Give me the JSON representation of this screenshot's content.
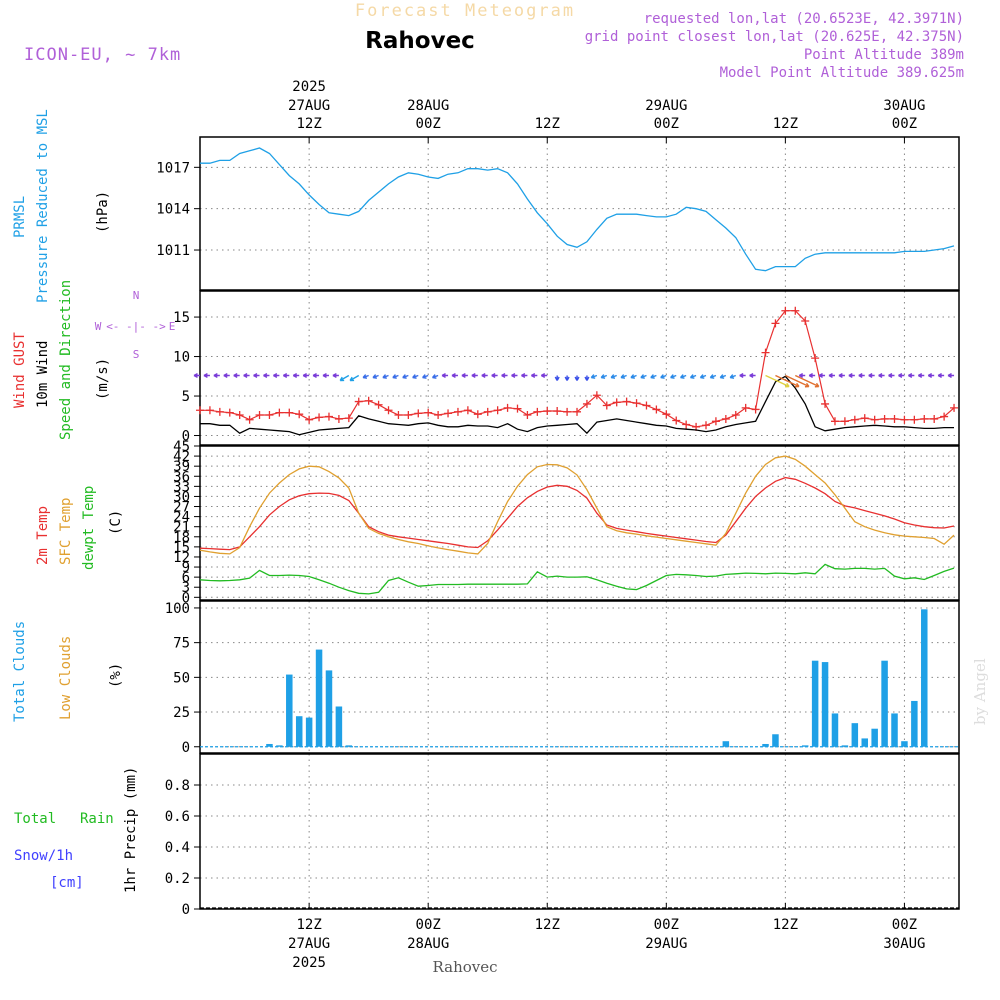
{
  "header": {
    "title": "Forecast Meteogram",
    "location": "Rahovec",
    "model": "ICON-EU, ~ 7km",
    "requested": "requested lon,lat (20.6523E, 42.3971N)",
    "grid_point": "grid point closest lon,lat (20.625E, 42.375N)",
    "point_altitude": "Point Altitude 389m",
    "model_altitude": "Model Point Altitude 389.625m",
    "credit": "by Angel",
    "footer_location": "Rahovec"
  },
  "time_axis": {
    "top_labels": [
      {
        "line1": "2025",
        "line2": "27AUG",
        "line3": "12Z"
      },
      {
        "line1": "",
        "line2": "28AUG",
        "line3": "00Z"
      },
      {
        "line1": "",
        "line2": "",
        "line3": "12Z"
      },
      {
        "line1": "",
        "line2": "29AUG",
        "line3": "00Z"
      },
      {
        "line1": "",
        "line2": "",
        "line3": "12Z"
      },
      {
        "line1": "",
        "line2": "30AUG",
        "line3": "00Z"
      }
    ],
    "bottom_labels": [
      {
        "line1": "12Z",
        "line2": "27AUG",
        "line3": "2025"
      },
      {
        "line1": "00Z",
        "line2": "28AUG",
        "line3": ""
      },
      {
        "line1": "12Z",
        "line2": "",
        "line3": ""
      },
      {
        "line1": "00Z",
        "line2": "29AUG",
        "line3": ""
      },
      {
        "line1": "12Z",
        "line2": "",
        "line3": ""
      },
      {
        "line1": "00Z",
        "line2": "30AUG",
        "line3": ""
      }
    ],
    "tick_hours": [
      12,
      24,
      36,
      48,
      60,
      72
    ],
    "range_hours": [
      1,
      77.5
    ]
  },
  "panels": {
    "pressure": {
      "labels": [
        "PRMSL",
        "Pressure Reduced to MSL",
        "(hPa)"
      ],
      "colors": [
        "#1fa0e6",
        "#1fa0e6",
        "#000000"
      ],
      "ticks": [
        "1017",
        "1014",
        "1011"
      ],
      "tick_values": [
        1017,
        1014,
        1011
      ],
      "ylim": [
        1008.1,
        1019.2
      ]
    },
    "wind": {
      "labels": [
        "Wind GUST",
        "10m Wind",
        "Speed and Direction",
        "(m/s)"
      ],
      "colors": [
        "#e83030",
        "#000000",
        "#22bb22",
        "#000000"
      ],
      "ticks": [
        "15",
        "10",
        "5",
        "0"
      ],
      "tick_values": [
        15,
        10,
        5,
        0
      ],
      "ylim": [
        -1.2,
        18.3
      ],
      "compass": {
        "n": "N",
        "s": "S",
        "w": "W",
        "e": "E",
        "center": "<- -|- ->"
      }
    },
    "temperature": {
      "labels": [
        "2m Temp",
        "SFC Temp",
        "dewpt Temp",
        "(C)"
      ],
      "colors": [
        "#e83030",
        "#e0a030",
        "#22bb22",
        "#000000"
      ],
      "ticks": [
        "45",
        "42",
        "39",
        "36",
        "33",
        "30",
        "27",
        "24",
        "21",
        "18",
        "15",
        "12",
        "9",
        "6",
        "3",
        "0"
      ],
      "tick_values": [
        45,
        42,
        39,
        36,
        33,
        30,
        27,
        24,
        21,
        18,
        15,
        12,
        9,
        6,
        3,
        0
      ],
      "ylim": [
        -0.8,
        45
      ]
    },
    "clouds": {
      "labels": [
        "Total Clouds",
        "Low Clouds",
        "(%)"
      ],
      "colors": [
        "#1fa0e6",
        "#e0a030",
        "#000000"
      ],
      "ticks": [
        "100",
        "75",
        "50",
        "25",
        "0"
      ],
      "tick_values": [
        100,
        75,
        50,
        25,
        0
      ],
      "ylim": [
        -4.5,
        105
      ]
    },
    "precip": {
      "labels": [
        "Total",
        "Rain",
        "Snow/1h",
        "[cm]",
        "1hr Precip (mm)"
      ],
      "colors": [
        "#22bb22",
        "#22bb22",
        "#4040ff",
        "#4040ff",
        "#000000"
      ],
      "ticks": [
        "0.8",
        "0.6",
        "0.4",
        "0.2",
        "0"
      ],
      "tick_values": [
        0.8,
        0.6,
        0.4,
        0.2,
        0
      ],
      "ylim": [
        0,
        1.0
      ]
    }
  },
  "chart_data": [
    {
      "type": "line",
      "title": "PRMSL Pressure Reduced to MSL",
      "ylabel": "(hPa)",
      "x_unit": "hours since 27AUG 00Z",
      "color": "#1fa0e6",
      "x": [
        1,
        2,
        3,
        4,
        5,
        6,
        7,
        8,
        9,
        10,
        11,
        12,
        13,
        14,
        15,
        16,
        17,
        18,
        19,
        20,
        21,
        22,
        23,
        24,
        25,
        26,
        27,
        28,
        29,
        30,
        31,
        32,
        33,
        34,
        35,
        36,
        37,
        38,
        39,
        40,
        41,
        42,
        43,
        44,
        45,
        46,
        47,
        48,
        49,
        50,
        51,
        52,
        53,
        54,
        55,
        56,
        57,
        58,
        59,
        60,
        61,
        62,
        63,
        64,
        65,
        66,
        67,
        68,
        69,
        70,
        71,
        72,
        73,
        74,
        75,
        76,
        77
      ],
      "values": [
        1017.3,
        1017.3,
        1017.5,
        1017.5,
        1018.0,
        1018.2,
        1018.4,
        1018.0,
        1017.2,
        1016.4,
        1015.8,
        1015.0,
        1014.3,
        1013.7,
        1013.6,
        1013.5,
        1013.8,
        1014.6,
        1015.2,
        1015.8,
        1016.3,
        1016.6,
        1016.5,
        1016.3,
        1016.2,
        1016.5,
        1016.6,
        1016.9,
        1016.9,
        1016.8,
        1016.9,
        1016.6,
        1015.8,
        1014.7,
        1013.7,
        1012.9,
        1012.0,
        1011.4,
        1011.2,
        1011.6,
        1012.5,
        1013.3,
        1013.6,
        1013.6,
        1013.6,
        1013.5,
        1013.4,
        1013.4,
        1013.6,
        1014.1,
        1014.0,
        1013.8,
        1013.2,
        1012.6,
        1011.9,
        1010.7,
        1009.6,
        1009.5,
        1009.8,
        1009.8,
        1009.8,
        1010.4,
        1010.7,
        1010.8,
        1010.8,
        1010.8,
        1010.8,
        1010.8,
        1010.8,
        1010.8,
        1010.8,
        1010.9,
        1010.9,
        1010.9,
        1011.0,
        1011.1,
        1011.3
      ]
    },
    {
      "type": "line",
      "title": "Wind GUST / 10m Wind Speed and Direction",
      "ylabel": "(m/s)",
      "x_unit": "hours since 27AUG 00Z",
      "x": [
        1,
        2,
        3,
        4,
        5,
        6,
        7,
        8,
        9,
        10,
        11,
        12,
        13,
        14,
        15,
        16,
        17,
        18,
        19,
        20,
        21,
        22,
        23,
        24,
        25,
        26,
        27,
        28,
        29,
        30,
        31,
        32,
        33,
        34,
        35,
        36,
        37,
        38,
        39,
        40,
        41,
        42,
        43,
        44,
        45,
        46,
        47,
        48,
        49,
        50,
        51,
        52,
        53,
        54,
        55,
        56,
        57,
        58,
        59,
        60,
        61,
        62,
        63,
        64,
        65,
        66,
        67,
        68,
        69,
        70,
        71,
        72,
        73,
        74,
        75,
        76,
        77
      ],
      "series": [
        {
          "name": "Wind GUST",
          "color": "#e83030",
          "marker": "+",
          "values": [
            3.2,
            3.2,
            3.0,
            2.9,
            2.6,
            2.0,
            2.6,
            2.6,
            2.9,
            2.9,
            2.7,
            2.0,
            2.3,
            2.4,
            2.1,
            2.2,
            4.3,
            4.4,
            3.9,
            3.2,
            2.6,
            2.6,
            2.8,
            2.9,
            2.6,
            2.8,
            3.0,
            3.2,
            2.7,
            3.0,
            3.2,
            3.5,
            3.4,
            2.6,
            3.0,
            3.1,
            3.1,
            3.0,
            3.0,
            4.0,
            5.1,
            3.8,
            4.2,
            4.3,
            4.1,
            3.8,
            3.3,
            2.7,
            1.9,
            1.4,
            1.1,
            1.3,
            1.8,
            2.1,
            2.6,
            3.5,
            3.3,
            10.5,
            14.2,
            15.8,
            15.8,
            14.5,
            9.8,
            4.0,
            1.8,
            1.8,
            2.0,
            2.2,
            2.0,
            2.1,
            2.1,
            2.0,
            2.0,
            2.1,
            2.1,
            2.4,
            3.5
          ]
        },
        {
          "name": "10m Wind",
          "color": "#000000",
          "values": [
            1.5,
            1.5,
            1.3,
            1.3,
            0.3,
            0.9,
            0.8,
            0.7,
            0.6,
            0.5,
            0.1,
            0.4,
            0.7,
            0.8,
            0.9,
            1.0,
            2.5,
            2.1,
            1.8,
            1.5,
            1.4,
            1.3,
            1.5,
            1.6,
            1.3,
            1.1,
            1.1,
            1.3,
            1.2,
            1.2,
            1.0,
            1.5,
            0.8,
            0.5,
            1.0,
            1.2,
            1.3,
            1.4,
            1.5,
            0.3,
            1.7,
            1.9,
            2.1,
            1.9,
            1.7,
            1.5,
            1.3,
            1.2,
            0.9,
            0.8,
            0.7,
            0.5,
            0.7,
            1.1,
            1.4,
            1.6,
            1.8,
            4.3,
            6.8,
            7.5,
            6.0,
            4.0,
            1.1,
            0.6,
            0.8,
            1.0,
            1.1,
            1.2,
            1.3,
            1.2,
            1.1,
            1.1,
            1.0,
            0.9,
            0.9,
            1.0,
            1.0
          ]
        }
      ]
    },
    {
      "type": "line",
      "title": "2m Temp / SFC Temp / dewpt Temp",
      "ylabel": "(C)",
      "x_unit": "hours since 27AUG 00Z",
      "x": [
        1,
        2,
        3,
        4,
        5,
        6,
        7,
        8,
        9,
        10,
        11,
        12,
        13,
        14,
        15,
        16,
        17,
        18,
        19,
        20,
        21,
        22,
        23,
        24,
        25,
        26,
        27,
        28,
        29,
        30,
        31,
        32,
        33,
        34,
        35,
        36,
        37,
        38,
        39,
        40,
        41,
        42,
        43,
        44,
        45,
        46,
        47,
        48,
        49,
        50,
        51,
        52,
        53,
        54,
        55,
        56,
        57,
        58,
        59,
        60,
        61,
        62,
        63,
        64,
        65,
        66,
        67,
        68,
        69,
        70,
        71,
        72,
        73,
        74,
        75,
        76,
        77
      ],
      "series": [
        {
          "name": "2m Temp",
          "color": "#e83030",
          "values": [
            14.6,
            14.5,
            14.3,
            14.2,
            15.0,
            18.0,
            21.0,
            24.5,
            27.0,
            29.0,
            30.2,
            30.8,
            31.0,
            30.9,
            30.3,
            28.8,
            25.0,
            21.0,
            19.5,
            18.5,
            18.0,
            17.6,
            17.2,
            16.8,
            16.4,
            16.0,
            15.5,
            15.0,
            14.8,
            16.8,
            20.0,
            23.5,
            27.0,
            29.6,
            31.5,
            32.8,
            33.3,
            33.0,
            31.8,
            29.5,
            25.0,
            21.5,
            20.5,
            20.0,
            19.5,
            19.0,
            18.6,
            18.2,
            17.8,
            17.4,
            17.0,
            16.6,
            16.3,
            18.5,
            22.5,
            26.5,
            30.0,
            32.5,
            34.5,
            35.6,
            35.1,
            33.9,
            32.5,
            30.8,
            28.5,
            27.2,
            26.6,
            25.8,
            25.0,
            24.2,
            23.3,
            22.2,
            21.5,
            21.0,
            20.7,
            20.6,
            21.2
          ]
        },
        {
          "name": "SFC Temp",
          "color": "#e0a030",
          "values": [
            14.0,
            13.5,
            13.1,
            12.9,
            14.8,
            21.0,
            26.5,
            31.0,
            34.0,
            36.5,
            38.2,
            39.0,
            38.8,
            37.4,
            35.5,
            32.5,
            25.0,
            20.5,
            19.0,
            18.0,
            17.2,
            16.5,
            16.0,
            15.3,
            14.7,
            14.2,
            13.7,
            13.2,
            12.9,
            16.0,
            22.5,
            28.5,
            33.0,
            36.5,
            38.8,
            39.5,
            39.4,
            38.5,
            36.4,
            32.0,
            26.5,
            21.0,
            19.8,
            19.2,
            18.8,
            18.3,
            17.9,
            17.5,
            17.1,
            16.7,
            16.3,
            15.9,
            15.5,
            19.0,
            25.0,
            31.0,
            36.0,
            39.5,
            41.5,
            42.0,
            41.0,
            39.0,
            36.5,
            34.0,
            30.5,
            26.5,
            22.5,
            21.0,
            20.0,
            19.2,
            18.6,
            18.2,
            18.0,
            17.8,
            17.5,
            15.8,
            18.5
          ]
        },
        {
          "name": "dewpt Temp",
          "color": "#22bb22",
          "values": [
            5.2,
            5.0,
            4.9,
            5.0,
            5.2,
            5.7,
            8.0,
            6.5,
            6.5,
            6.6,
            6.5,
            6.2,
            5.2,
            4.2,
            3.0,
            2.0,
            1.2,
            1.0,
            1.5,
            5.0,
            5.8,
            4.5,
            3.3,
            3.5,
            3.8,
            3.8,
            3.8,
            3.9,
            3.9,
            3.9,
            3.9,
            3.9,
            3.9,
            4.0,
            7.6,
            6.0,
            6.3,
            6.0,
            6.0,
            6.1,
            5.2,
            4.2,
            3.3,
            2.5,
            2.3,
            3.5,
            5.0,
            6.5,
            6.8,
            6.7,
            6.5,
            6.2,
            6.3,
            6.8,
            7.0,
            7.2,
            7.1,
            7.0,
            7.2,
            7.1,
            7.0,
            7.3,
            7.0,
            9.8,
            8.5,
            8.4,
            8.6,
            8.6,
            8.4,
            8.6,
            6.3,
            5.5,
            5.8,
            5.3,
            6.5,
            7.7,
            8.7
          ]
        }
      ]
    },
    {
      "type": "bar",
      "title": "Total Clouds / Low Clouds",
      "ylabel": "(%)",
      "x_unit": "hours since 27AUG 00Z",
      "x": [
        8,
        9,
        10,
        11,
        12,
        13,
        14,
        15,
        16,
        17,
        54,
        58,
        59,
        62,
        63,
        64,
        65,
        66,
        67,
        68,
        69,
        70,
        71,
        72,
        73,
        74,
        75,
        76,
        77
      ],
      "series": [
        {
          "name": "Total Clouds",
          "color": "#1fa0e6",
          "values": [
            2,
            1,
            52,
            22,
            21,
            70,
            55,
            29,
            1,
            0,
            4,
            2,
            9,
            1,
            62,
            61,
            24,
            1,
            17,
            6,
            13,
            62,
            24,
            4,
            33,
            99,
            0,
            0,
            0
          ]
        }
      ]
    },
    {
      "type": "bar",
      "title": "Total Rain / Snow/1h",
      "ylabel": "1hr Precip (mm)",
      "x_unit": "hours since 27AUG 00Z",
      "ylim": [
        0,
        1.0
      ],
      "series": [
        {
          "name": "Total Rain",
          "color": "#22bb22",
          "values": []
        },
        {
          "name": "Snow/1h",
          "color": "#4040ff",
          "values": []
        }
      ]
    }
  ]
}
